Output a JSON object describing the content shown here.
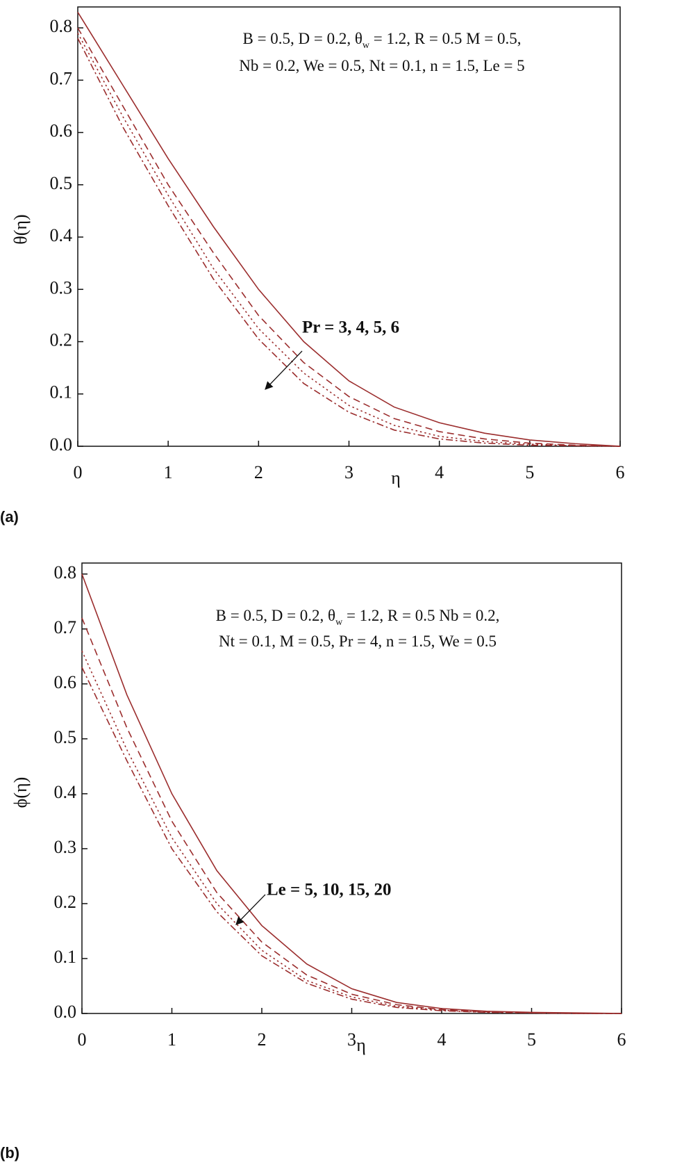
{
  "chart_data": [
    {
      "type": "line",
      "panel_label": "(a)",
      "xlabel": "η",
      "ylabel": "θ(η)",
      "annotation": [
        [
          "B = 0.5, D = 0.2, θ",
          "w",
          " = 1.2, R = 0.5 M = 0.5,"
        ],
        [
          "Nb = 0.2, We = 0.5, Nt = 0.1, n = 1.5, Le = 5"
        ]
      ],
      "arrow_label": "Pr = 3, 4, 5, 6",
      "xlim": [
        0,
        6
      ],
      "xticks": [
        0,
        1,
        2,
        3,
        4,
        5,
        6
      ],
      "ylim": [
        0,
        0.84
      ],
      "yticks": [
        {
          "value": 0,
          "label": "0.0"
        },
        0.1,
        0.2,
        0.3,
        0.4,
        0.5,
        0.6,
        0.7,
        0.8
      ],
      "x": [
        0,
        0.5,
        1,
        1.5,
        2,
        2.5,
        3,
        3.5,
        4,
        4.5,
        5,
        5.5,
        6
      ],
      "series": [
        {
          "color": "#9b2d2d",
          "dash": "solid",
          "values": [
            0.83,
            0.69,
            0.55,
            0.42,
            0.3,
            0.2,
            0.125,
            0.075,
            0.045,
            0.025,
            0.012,
            0.005,
            0
          ]
        },
        {
          "color": "#9b2d2d",
          "dash": "dash",
          "values": [
            0.8,
            0.65,
            0.5,
            0.37,
            0.25,
            0.16,
            0.095,
            0.053,
            0.028,
            0.014,
            0.006,
            0.002,
            0
          ]
        },
        {
          "color": "#9b2d2d",
          "dash": "dot",
          "values": [
            0.79,
            0.63,
            0.48,
            0.34,
            0.225,
            0.14,
            0.078,
            0.04,
            0.019,
            0.009,
            0.004,
            0.001,
            0
          ]
        },
        {
          "color": "#9b2d2d",
          "dash": "dashdot",
          "values": [
            0.78,
            0.61,
            0.46,
            0.32,
            0.205,
            0.12,
            0.065,
            0.031,
            0.014,
            0.006,
            0.002,
            0.001,
            0
          ]
        }
      ]
    },
    {
      "type": "line",
      "panel_label": "(b)",
      "xlabel": "η",
      "ylabel": "ϕ(η)",
      "annotation": [
        [
          "B = 0.5, D = 0.2, θ",
          "w",
          " = 1.2, R = 0.5 Nb = 0.2,"
        ],
        [
          "Nt = 0.1, M = 0.5, Pr = 4, n = 1.5, We = 0.5"
        ]
      ],
      "arrow_label": "Le = 5, 10, 15, 20",
      "xlim": [
        0,
        6
      ],
      "xticks": [
        0,
        1,
        2,
        3,
        4,
        5,
        6
      ],
      "ylim": [
        0,
        0.82
      ],
      "yticks": [
        {
          "value": 0,
          "label": "0.0"
        },
        0.1,
        0.2,
        0.3,
        0.4,
        0.5,
        0.6,
        0.7,
        0.8
      ],
      "x": [
        0,
        0.5,
        1,
        1.5,
        2,
        2.5,
        3,
        3.5,
        4,
        4.5,
        5,
        5.5,
        6
      ],
      "series": [
        {
          "color": "#9b2d2d",
          "dash": "solid",
          "values": [
            0.8,
            0.58,
            0.4,
            0.26,
            0.16,
            0.09,
            0.045,
            0.02,
            0.009,
            0.004,
            0.002,
            0.001,
            0
          ]
        },
        {
          "color": "#9b2d2d",
          "dash": "dash",
          "values": [
            0.72,
            0.52,
            0.35,
            0.22,
            0.13,
            0.07,
            0.035,
            0.016,
            0.007,
            0.003,
            0.001,
            0,
            0
          ]
        },
        {
          "color": "#9b2d2d",
          "dash": "dot",
          "values": [
            0.66,
            0.48,
            0.32,
            0.2,
            0.115,
            0.06,
            0.03,
            0.013,
            0.006,
            0.002,
            0.001,
            0,
            0
          ]
        },
        {
          "color": "#9b2d2d",
          "dash": "dashdot",
          "values": [
            0.63,
            0.46,
            0.3,
            0.185,
            0.105,
            0.055,
            0.026,
            0.011,
            0.005,
            0.002,
            0.001,
            0,
            0
          ]
        }
      ]
    }
  ]
}
